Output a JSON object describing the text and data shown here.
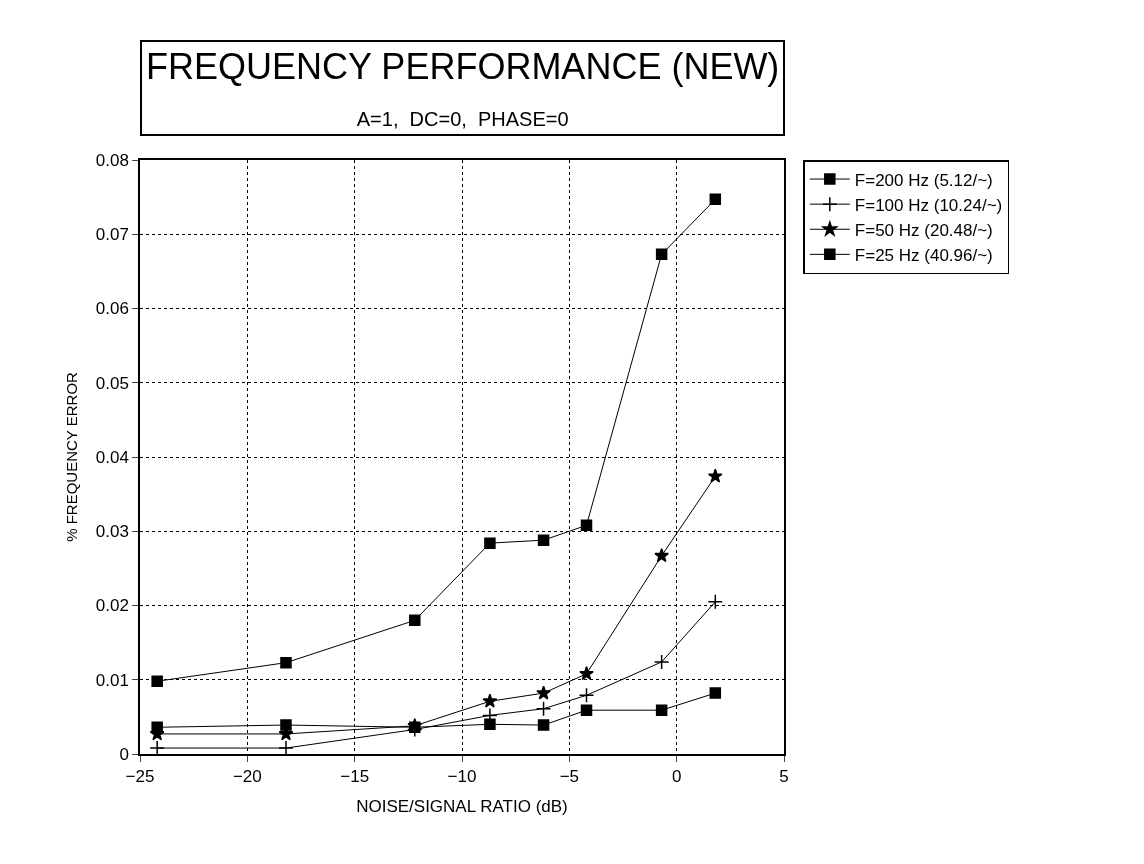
{
  "chart_data": {
    "type": "line",
    "title": "FREQUENCY PERFORMANCE (NEW)",
    "subtitle": "A=1,  DC=0,  PHASE=0",
    "xlabel": "NOISE/SIGNAL RATIO (dB)",
    "ylabel": "% FREQUENCY ERROR",
    "x": [
      -24.2,
      -18.2,
      -12.2,
      -8.7,
      -6.2,
      -4.2,
      -0.7,
      1.8
    ],
    "series": [
      {
        "name": "F=200 Hz (5.12/~)",
        "color": "#000000",
        "marker": "square",
        "values": [
          0.0036,
          0.0039,
          0.0036,
          0.004,
          0.0039,
          0.0059,
          0.0059,
          0.0082
        ]
      },
      {
        "name": "F=100 Hz (10.24/~)",
        "color": "#000000",
        "marker": "cross",
        "values": [
          0.0008,
          0.0008,
          0.0033,
          0.0052,
          0.0061,
          0.0079,
          0.0124,
          0.0205
        ]
      },
      {
        "name": "F=50 Hz (20.48/~)",
        "color": "#000000",
        "marker": "star",
        "values": [
          0.0027,
          0.0027,
          0.0038,
          0.0071,
          0.0082,
          0.0108,
          0.0267,
          0.0374
        ]
      },
      {
        "name": "F=25 Hz (40.96/~)",
        "color": "#000000",
        "marker": "square",
        "values": [
          0.0098,
          0.0123,
          0.018,
          0.0284,
          0.0288,
          0.0308,
          0.0673,
          0.0747
        ]
      }
    ],
    "xlim": [
      -25,
      5
    ],
    "xticks": [
      -25,
      -20,
      -15,
      -10,
      -5,
      0,
      5
    ],
    "ylim": [
      0,
      0.08
    ],
    "yticks": [
      0,
      0.01,
      0.02,
      0.03,
      0.04,
      0.05,
      0.06,
      0.07,
      0.08
    ],
    "grid": true,
    "legend": "top right",
    "line_style": "solid"
  }
}
